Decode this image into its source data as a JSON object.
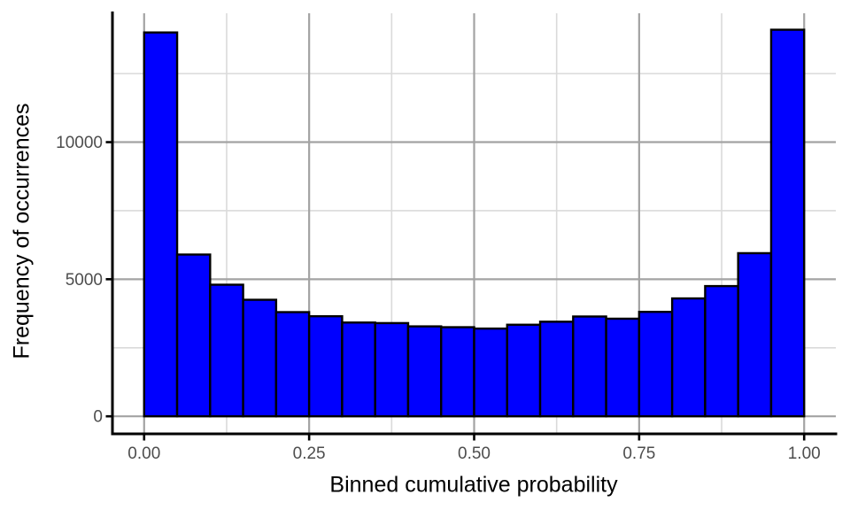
{
  "chart_data": {
    "type": "bar",
    "subtype": "histogram",
    "title": "",
    "xlabel": "Binned cumulative probability",
    "ylabel": "Frequency of occurrences",
    "bin_width": 0.05,
    "bin_starts": [
      0.0,
      0.05,
      0.1,
      0.15,
      0.2,
      0.25,
      0.3,
      0.35,
      0.4,
      0.45,
      0.5,
      0.55,
      0.6,
      0.65,
      0.7,
      0.75,
      0.8,
      0.85,
      0.9,
      0.95
    ],
    "values": [
      14000,
      5900,
      4800,
      4250,
      3800,
      3650,
      3420,
      3400,
      3280,
      3250,
      3200,
      3340,
      3450,
      3640,
      3560,
      3810,
      4300,
      4750,
      5950,
      14100
    ],
    "x_ticks": {
      "values": [
        0,
        0.25,
        0.5,
        0.75,
        1.0
      ],
      "labels": [
        "0.00",
        "0.25",
        "0.50",
        "0.75",
        "1.00"
      ]
    },
    "y_ticks": {
      "values": [
        0,
        5000,
        10000
      ],
      "labels": [
        "0",
        "5000",
        "10000"
      ]
    },
    "x_minor": [
      0.125,
      0.375,
      0.625,
      0.875
    ],
    "y_minor": [
      2500,
      7500,
      12500
    ],
    "xlim": [
      -0.048,
      1.048
    ],
    "ylim": [
      -640,
      14700
    ],
    "grid": {
      "major": true,
      "minor": true
    },
    "legend_position": "none",
    "colors": {
      "bar_fill": "#0000FF",
      "bar_border": "#000000",
      "grid_major": "#a3a3a3",
      "grid_minor": "#dadada",
      "axis_line": "#000000",
      "tick_label": "#4d4d4d",
      "axis_title": "#000000",
      "background": "#ffffff"
    }
  }
}
